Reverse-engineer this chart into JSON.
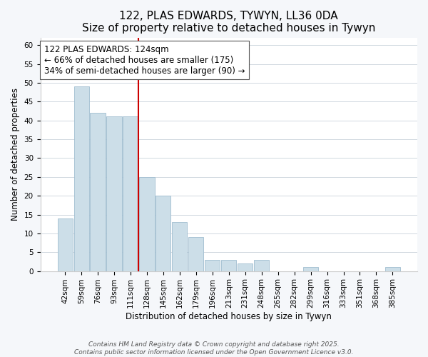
{
  "title": "122, PLAS EDWARDS, TYWYN, LL36 0DA",
  "subtitle": "Size of property relative to detached houses in Tywyn",
  "xlabel": "Distribution of detached houses by size in Tywyn",
  "ylabel": "Number of detached properties",
  "bar_labels": [
    "42sqm",
    "59sqm",
    "76sqm",
    "93sqm",
    "111sqm",
    "128sqm",
    "145sqm",
    "162sqm",
    "179sqm",
    "196sqm",
    "213sqm",
    "231sqm",
    "248sqm",
    "265sqm",
    "282sqm",
    "299sqm",
    "316sqm",
    "333sqm",
    "351sqm",
    "368sqm",
    "385sqm"
  ],
  "bar_values": [
    14,
    49,
    42,
    41,
    41,
    25,
    20,
    13,
    9,
    3,
    3,
    2,
    3,
    0,
    0,
    1,
    0,
    0,
    0,
    0,
    1
  ],
  "bar_color": "#ccdee8",
  "bar_edge_color": "#a0bdd0",
  "vline_x_index": 5,
  "vline_color": "#cc0000",
  "annotation_text": "122 PLAS EDWARDS: 124sqm\n← 66% of detached houses are smaller (175)\n34% of semi-detached houses are larger (90) →",
  "annotation_box_color": "#ffffff",
  "annotation_box_edge": "#555555",
  "ylim": [
    0,
    62
  ],
  "yticks": [
    0,
    5,
    10,
    15,
    20,
    25,
    30,
    35,
    40,
    45,
    50,
    55,
    60
  ],
  "footer1": "Contains HM Land Registry data © Crown copyright and database right 2025.",
  "footer2": "Contains public sector information licensed under the Open Government Licence v3.0.",
  "background_color": "#f5f7fa",
  "plot_bg_color": "#ffffff",
  "grid_color": "#d0d8e0",
  "title_fontsize": 11,
  "subtitle_fontsize": 9.5,
  "axis_label_fontsize": 8.5,
  "tick_fontsize": 7.5,
  "annotation_fontsize": 8.5,
  "footer_fontsize": 6.5
}
